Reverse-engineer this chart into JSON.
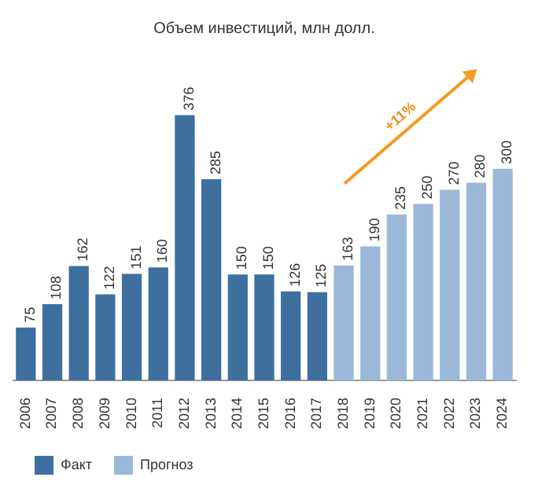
{
  "chart_data": {
    "type": "bar",
    "title": "Объем инвестиций, млн долл.",
    "categories": [
      "2006",
      "2007",
      "2008",
      "2009",
      "2010",
      "2011",
      "2012",
      "2013",
      "2014",
      "2015",
      "2016",
      "2017",
      "2018",
      "2019",
      "2020",
      "2021",
      "2022",
      "2023",
      "2024"
    ],
    "series": [
      {
        "name": "Факт",
        "color": "#3e6f9f",
        "values": [
          75,
          108,
          162,
          122,
          151,
          160,
          376,
          285,
          150,
          150,
          126,
          125,
          null,
          null,
          null,
          null,
          null,
          null,
          null
        ]
      },
      {
        "name": "Прогноз",
        "color": "#9bb8d8",
        "values": [
          null,
          null,
          null,
          null,
          null,
          null,
          null,
          null,
          null,
          null,
          null,
          null,
          163,
          190,
          235,
          250,
          270,
          280,
          300
        ]
      }
    ],
    "data_labels": true,
    "legend": "bottom",
    "grid": false,
    "annotations": [
      "+11%"
    ]
  }
}
